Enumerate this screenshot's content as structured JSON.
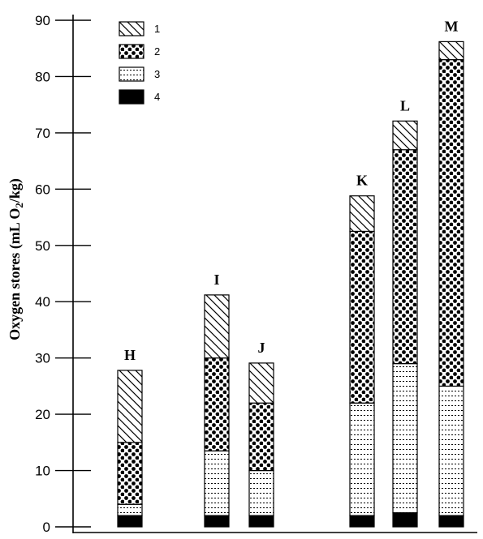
{
  "chart_data": {
    "type": "bar",
    "stacked": true,
    "ylabel_prefix": "Oxygen stores (mL O",
    "ylabel_sub": "2",
    "ylabel_suffix": "/kg)",
    "ylim": [
      0,
      90
    ],
    "yticks": [
      "0",
      "10",
      "20",
      "30",
      "40",
      "50",
      "60",
      "70",
      "80",
      "90"
    ],
    "categories": [
      "H",
      "I",
      "J",
      "K",
      "L",
      "M"
    ],
    "series": [
      {
        "name": "4",
        "pattern": "solid",
        "values": [
          2,
          2,
          2,
          2,
          2.5,
          2
        ]
      },
      {
        "name": "3",
        "pattern": "dashes",
        "values": [
          2,
          11.5,
          8,
          20,
          26.5,
          23
        ]
      },
      {
        "name": "2",
        "pattern": "dots",
        "values": [
          11,
          16.5,
          12,
          30.5,
          38,
          58
        ]
      },
      {
        "name": "1",
        "pattern": "hatch",
        "values": [
          12.8,
          11.2,
          7.1,
          6.3,
          5.1,
          3.2
        ]
      }
    ],
    "legend": {
      "position": "top-left",
      "entries": [
        {
          "label": "1",
          "pattern": "hatch"
        },
        {
          "label": "2",
          "pattern": "dots"
        },
        {
          "label": "3",
          "pattern": "dashes"
        },
        {
          "label": "4",
          "pattern": "solid"
        }
      ]
    },
    "grid": false
  }
}
